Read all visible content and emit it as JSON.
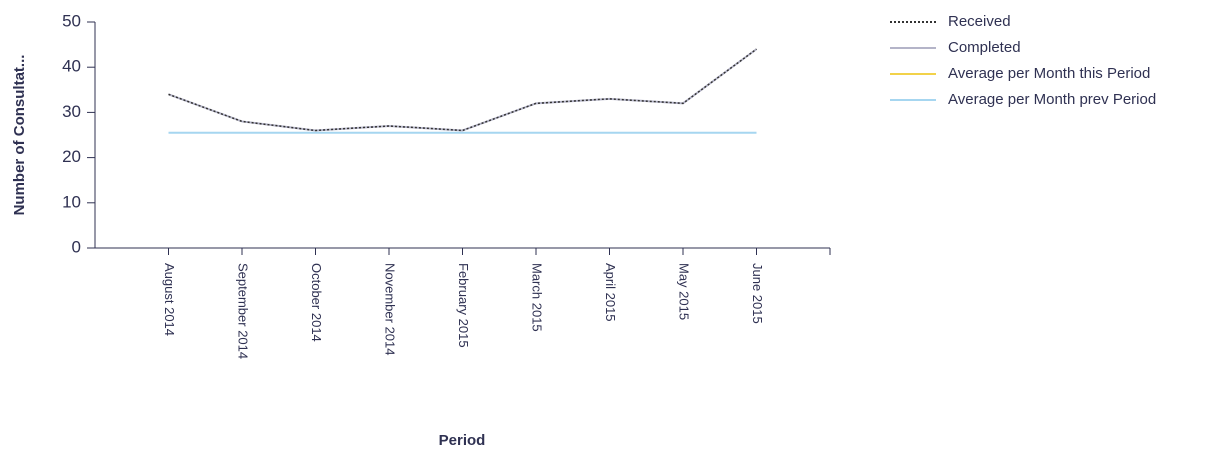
{
  "chart_data": {
    "type": "line",
    "x_label": "Period",
    "y_label": "Number of Consultat...",
    "categories": [
      "August 2014",
      "September 2014",
      "October 2014",
      "November 2014",
      "February 2015",
      "March 2015",
      "April 2015",
      "May 2015",
      "June 2015"
    ],
    "series": [
      {
        "name": "Received",
        "color": "#333333",
        "line_style": "dotted",
        "values": [
          34,
          28,
          26,
          27,
          26,
          32,
          33,
          32,
          44
        ]
      },
      {
        "name": "Completed",
        "color": "#b4b4c8",
        "line_style": "solid",
        "values": [
          34,
          28,
          26,
          27,
          26,
          32,
          33,
          32,
          44
        ]
      },
      {
        "name": "Average per Month this Period",
        "color": "#f2d24a",
        "line_style": "solid",
        "values": [
          null,
          null,
          null,
          null,
          null,
          null,
          null,
          null,
          null
        ]
      },
      {
        "name": "Average per Month prev Period",
        "color": "#a6d6f0",
        "line_style": "solid",
        "values": [
          25.5,
          25.5,
          25.5,
          25.5,
          25.5,
          25.5,
          25.5,
          25.5,
          25.5
        ]
      }
    ],
    "ylim": [
      0,
      50
    ],
    "yticks": [
      0,
      10,
      20,
      30,
      40,
      50
    ],
    "legend": "right"
  }
}
